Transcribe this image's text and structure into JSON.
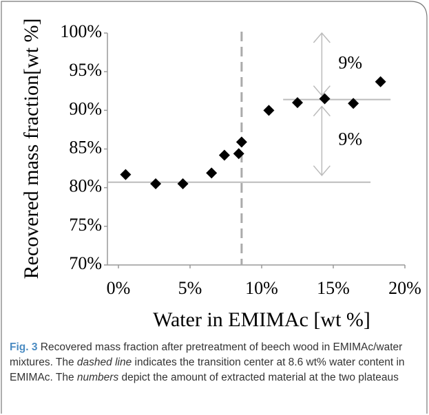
{
  "chart_data": {
    "type": "scatter",
    "xlabel": "Water in EMIMAc [wt %]",
    "ylabel": "Recovered mass fraction[wt %]",
    "x": [
      0.5,
      2.6,
      4.5,
      6.5,
      7.4,
      8.4,
      8.6,
      10.5,
      12.5,
      14.4,
      16.4,
      18.3
    ],
    "series": [
      {
        "name": "Recovered mass fraction",
        "color": "#000000",
        "values": [
          81.7,
          80.5,
          80.5,
          81.9,
          84.2,
          84.4,
          85.9,
          90.0,
          91.0,
          91.5,
          90.9,
          93.7
        ]
      }
    ],
    "xlim": [
      0,
      20
    ],
    "ylim": [
      70,
      100
    ],
    "xticks": [
      {
        "value": 0,
        "label": "0%"
      },
      {
        "value": 5,
        "label": "5%"
      },
      {
        "value": 10,
        "label": "10%"
      },
      {
        "value": 15,
        "label": "15%"
      },
      {
        "value": 20,
        "label": "20%"
      }
    ],
    "yticks": [
      {
        "value": 70,
        "label": "70%"
      },
      {
        "value": 75,
        "label": "75%"
      },
      {
        "value": 80,
        "label": "80%"
      },
      {
        "value": 85,
        "label": "85%"
      },
      {
        "value": 90,
        "label": "90%"
      },
      {
        "value": 95,
        "label": "95%"
      },
      {
        "value": 100,
        "label": "100%"
      }
    ],
    "transition_line": 8.6,
    "plateaus": [
      80.7,
      91.4
    ],
    "annotations": [
      "9%",
      "9%"
    ],
    "caption": {
      "label": "Fig. 3",
      "segments": [
        {
          "text": " Recovered mass fraction after pretreatment of beech wood in EMIMAc/water mixtures. The ",
          "italic": false
        },
        {
          "text": "dashed line",
          "italic": true
        },
        {
          "text": " indicates the transition center at 8.6 wt% water content in EMIMAc. The ",
          "italic": false
        },
        {
          "text": "numbers",
          "italic": true
        },
        {
          "text": " depict the amount of extracted material at the two plateaus",
          "italic": false
        }
      ]
    }
  }
}
